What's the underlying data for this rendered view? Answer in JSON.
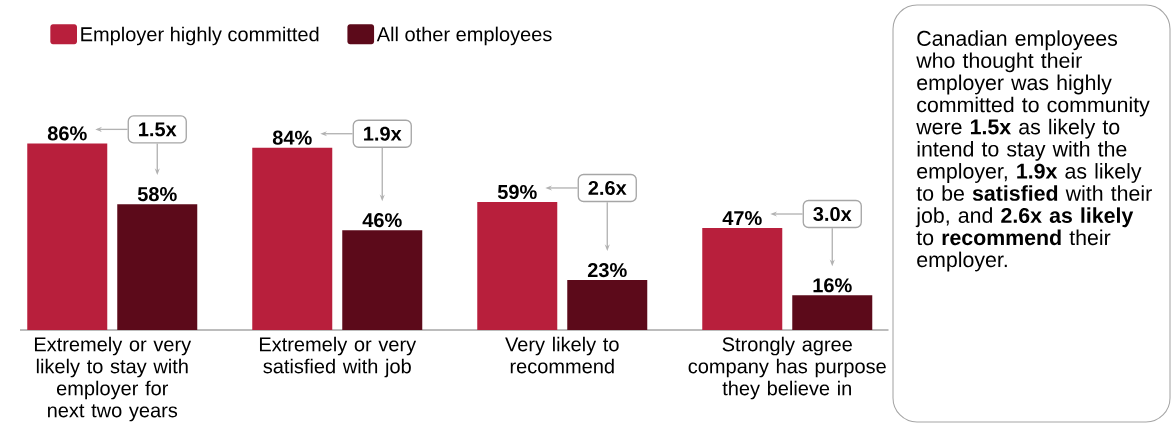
{
  "chart_data": {
    "type": "bar",
    "categories": [
      "Extremely or very likely to stay with employer for next two years",
      "Extremely or very satisfied with job",
      "Very likely to recommend",
      "Strongly agree company has purpose they believe in"
    ],
    "series": [
      {
        "name": "Employer highly committed",
        "color": "#b81f3c",
        "values": [
          86,
          84,
          59,
          47
        ],
        "value_labels": [
          "86%",
          "84%",
          "59%",
          "47%"
        ]
      },
      {
        "name": "All other employees",
        "color": "#5c0a1a",
        "values": [
          58,
          46,
          23,
          16
        ],
        "value_labels": [
          "58%",
          "46%",
          "23%",
          "16%"
        ]
      }
    ],
    "ylim": [
      0,
      100
    ],
    "legend": "top left",
    "annotations": [
      "1.5x",
      "1.9x",
      "2.6x",
      "3.0x",
      "Canadian employees who thought their employer was highly committed to community were **1.5x** as likely to intend to stay with the employer, **1.9x** as likely to be **satisfied** with their job, and **2.6x as likely** to **recommend** their employer."
    ]
  }
}
